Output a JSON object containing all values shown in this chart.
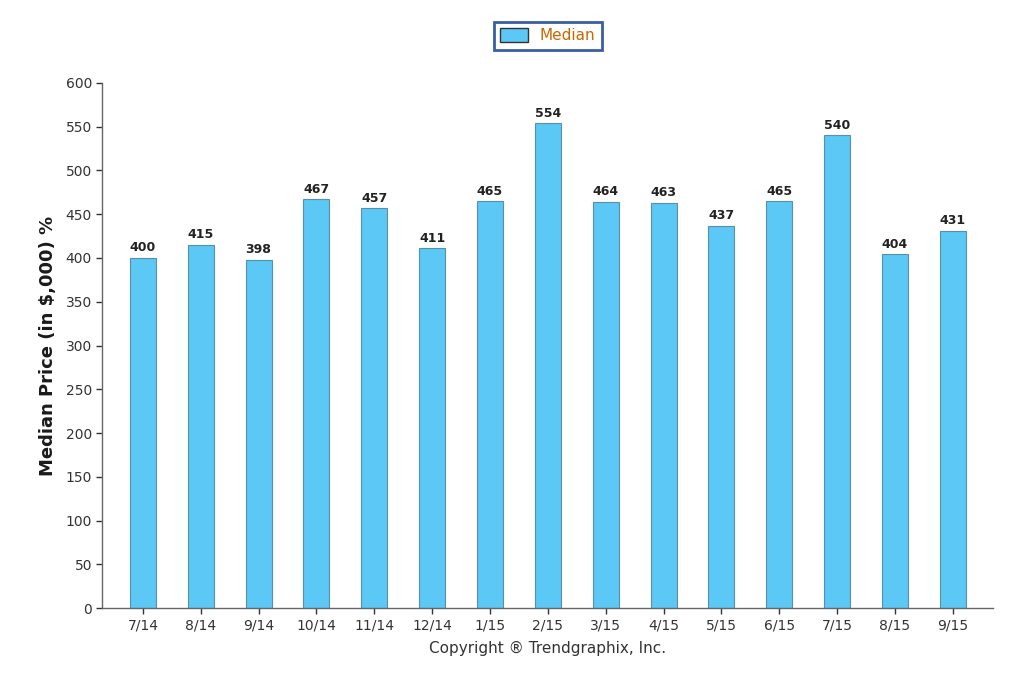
{
  "categories": [
    "7/14",
    "8/14",
    "9/14",
    "10/14",
    "11/14",
    "12/14",
    "1/15",
    "2/15",
    "3/15",
    "4/15",
    "5/15",
    "6/15",
    "7/15",
    "8/15",
    "9/15"
  ],
  "values": [
    400,
    415,
    398,
    467,
    457,
    411,
    465,
    554,
    464,
    463,
    437,
    465,
    540,
    404,
    431
  ],
  "bar_color": "#5BC8F5",
  "bar_edge_color": "#5A8FAA",
  "ylabel": "Median Price (in $,000) %",
  "xlabel": "Copyright ® Trendgraphix, Inc.",
  "ylim": [
    0,
    600
  ],
  "yticks": [
    0,
    50,
    100,
    150,
    200,
    250,
    300,
    350,
    400,
    450,
    500,
    550,
    600
  ],
  "legend_label": "Median",
  "legend_edge_color": "#3A5FA0",
  "legend_text_color": "#CC6600",
  "background_color": "#FFFFFF",
  "bar_label_fontsize": 9,
  "bar_label_fontweight": "bold",
  "axis_label_fontsize": 13,
  "tick_label_fontsize": 10,
  "xlabel_fontsize": 11,
  "legend_fontsize": 11,
  "bar_width": 0.45,
  "spine_color": "#666666"
}
